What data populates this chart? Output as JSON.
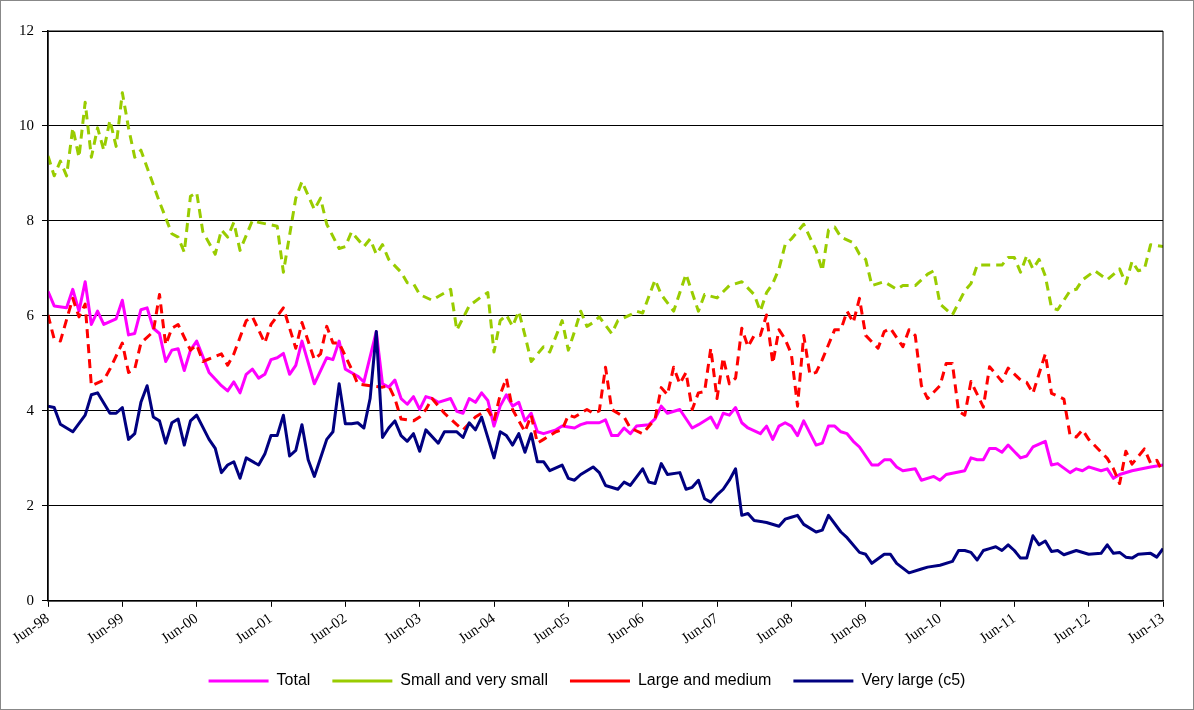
{
  "chart_data": {
    "type": "line",
    "xlim": [
      "1998-06",
      "2013-06"
    ],
    "ylim": [
      0,
      12
    ],
    "yticks": [
      0,
      2,
      4,
      6,
      8,
      10,
      12
    ],
    "xticks": [
      {
        "value": "1998-06",
        "label": "Jun-98"
      },
      {
        "value": "1999-06",
        "label": "Jun-99"
      },
      {
        "value": "2000-06",
        "label": "Jun-00"
      },
      {
        "value": "2001-06",
        "label": "Jun-01"
      },
      {
        "value": "2002-06",
        "label": "Jun-02"
      },
      {
        "value": "2003-06",
        "label": "Jun-03"
      },
      {
        "value": "2004-06",
        "label": "Jun-04"
      },
      {
        "value": "2005-06",
        "label": "Jun-05"
      },
      {
        "value": "2006-06",
        "label": "Jun-06"
      },
      {
        "value": "2007-06",
        "label": "Jun-07"
      },
      {
        "value": "2008-06",
        "label": "Jun-08"
      },
      {
        "value": "2009-06",
        "label": "Jun-09"
      },
      {
        "value": "2010-06",
        "label": "Jun-10"
      },
      {
        "value": "2011-06",
        "label": "Jun-11"
      },
      {
        "value": "2012-06",
        "label": "Jun-12"
      },
      {
        "value": "2013-06",
        "label": "Jun-13"
      }
    ],
    "grid": "y",
    "legend": "bottom",
    "marker": "none",
    "series": [
      {
        "name": "Total",
        "color": "#ff00ff",
        "line_style": "solid",
        "x": [
          "1998-06",
          "1998-07",
          "1998-09",
          "1998-10",
          "1998-11",
          "1998-12",
          "1999-01",
          "1999-02",
          "1999-03",
          "1999-05",
          "1999-06",
          "1999-07",
          "1999-08",
          "1999-09",
          "1999-10",
          "1999-11",
          "1999-12",
          "2000-01",
          "2000-02",
          "2000-03",
          "2000-04",
          "2000-05",
          "2000-06",
          "2000-08",
          "2000-10",
          "2000-11",
          "2000-12",
          "2001-01",
          "2001-02",
          "2001-03",
          "2001-04",
          "2001-05",
          "2001-06",
          "2001-07",
          "2001-08",
          "2001-09",
          "2001-10",
          "2001-11",
          "2002-01",
          "2002-03",
          "2002-04",
          "2002-05",
          "2002-06",
          "2002-08",
          "2002-09",
          "2002-11",
          "2002-12",
          "2003-01",
          "2003-02",
          "2003-03",
          "2003-04",
          "2003-05",
          "2003-06",
          "2003-07",
          "2003-08",
          "2003-09",
          "2003-11",
          "2003-12",
          "2004-01",
          "2004-02",
          "2004-03",
          "2004-04",
          "2004-05",
          "2004-06",
          "2004-07",
          "2004-08",
          "2004-09",
          "2004-10",
          "2004-11",
          "2004-12",
          "2005-01",
          "2005-02",
          "2005-04",
          "2005-05",
          "2005-07",
          "2005-08",
          "2005-09",
          "2005-11",
          "2005-12",
          "2006-01",
          "2006-02",
          "2006-03",
          "2006-04",
          "2006-05",
          "2006-07",
          "2006-08",
          "2006-09",
          "2006-10",
          "2006-12",
          "2007-02",
          "2007-03",
          "2007-05",
          "2007-06",
          "2007-07",
          "2007-08",
          "2007-09",
          "2007-10",
          "2007-11",
          "2008-01",
          "2008-02",
          "2008-03",
          "2008-04",
          "2008-05",
          "2008-06",
          "2008-07",
          "2008-08",
          "2008-10",
          "2008-11",
          "2008-12",
          "2009-01",
          "2009-02",
          "2009-03",
          "2009-04",
          "2009-05",
          "2009-07",
          "2009-08",
          "2009-09",
          "2009-10",
          "2009-11",
          "2009-12",
          "2010-02",
          "2010-03",
          "2010-05",
          "2010-06",
          "2010-07",
          "2010-10",
          "2010-11",
          "2010-12",
          "2011-01",
          "2011-02",
          "2011-03",
          "2011-04",
          "2011-05",
          "2011-07",
          "2011-08",
          "2011-09",
          "2011-11",
          "2011-12",
          "2012-01",
          "2012-03",
          "2012-04",
          "2012-05",
          "2012-06",
          "2012-08",
          "2012-09",
          "2012-10",
          "2012-11",
          "2013-01",
          "2013-04",
          "2013-06"
        ],
        "values": [
          6.52,
          6.21,
          6.17,
          6.56,
          6.1,
          6.72,
          5.82,
          6.1,
          5.82,
          5.94,
          6.33,
          5.6,
          5.63,
          6.13,
          6.17,
          5.74,
          5.63,
          5.04,
          5.28,
          5.31,
          4.85,
          5.28,
          5.47,
          4.81,
          4.53,
          4.42,
          4.61,
          4.38,
          4.77,
          4.88,
          4.69,
          4.77,
          5.08,
          5.12,
          5.21,
          4.77,
          4.96,
          5.47,
          4.57,
          5.12,
          5.08,
          5.47,
          4.88,
          4.73,
          4.61,
          5.67,
          4.57,
          4.5,
          4.65,
          4.26,
          4.14,
          4.3,
          4.03,
          4.3,
          4.26,
          4.18,
          4.26,
          3.99,
          3.95,
          4.26,
          4.18,
          4.38,
          4.22,
          3.68,
          4.1,
          4.34,
          4.1,
          4.18,
          3.79,
          3.95,
          3.56,
          3.52,
          3.6,
          3.68,
          3.64,
          3.71,
          3.75,
          3.75,
          3.81,
          3.48,
          3.48,
          3.64,
          3.52,
          3.68,
          3.71,
          3.83,
          4.1,
          3.95,
          4.03,
          3.64,
          3.71,
          3.87,
          3.64,
          3.95,
          3.91,
          4.07,
          3.75,
          3.64,
          3.52,
          3.68,
          3.4,
          3.68,
          3.75,
          3.68,
          3.48,
          3.79,
          3.28,
          3.32,
          3.68,
          3.68,
          3.56,
          3.52,
          3.36,
          3.24,
          2.86,
          2.86,
          2.97,
          2.97,
          2.82,
          2.74,
          2.78,
          2.54,
          2.62,
          2.54,
          2.66,
          2.74,
          3.01,
          2.97,
          2.97,
          3.21,
          3.21,
          3.13,
          3.28,
          3.01,
          3.05,
          3.24,
          3.36,
          2.86,
          2.89,
          2.7,
          2.78,
          2.74,
          2.82,
          2.74,
          2.78,
          2.58,
          2.66,
          2.74,
          2.82,
          2.86
        ]
      },
      {
        "name": "Small and very small",
        "color": "#99cc00",
        "line_style": "dashed",
        "x": [
          "1998-06",
          "1998-07",
          "1998-08",
          "1998-09",
          "1998-10",
          "1998-11",
          "1998-12",
          "1999-01",
          "1999-02",
          "1999-03",
          "1999-04",
          "1999-05",
          "1999-06",
          "1999-07",
          "1999-08",
          "1999-09",
          "1999-12",
          "2000-02",
          "2000-03",
          "2000-04",
          "2000-05",
          "2000-06",
          "2000-07",
          "2000-09",
          "2000-10",
          "2000-11",
          "2000-12",
          "2001-01",
          "2001-03",
          "2001-04",
          "2001-07",
          "2001-08",
          "2001-10",
          "2001-11",
          "2002-01",
          "2002-02",
          "2002-03",
          "2002-05",
          "2002-06",
          "2002-07",
          "2002-09",
          "2002-10",
          "2002-11",
          "2002-12",
          "2003-01",
          "2003-03",
          "2003-04",
          "2003-05",
          "2003-06",
          "2003-08",
          "2003-09",
          "2003-11",
          "2003-12",
          "2004-02",
          "2004-04",
          "2004-05",
          "2004-06",
          "2004-07",
          "2004-08",
          "2004-09",
          "2004-10",
          "2004-11",
          "2004-12",
          "2005-02",
          "2005-03",
          "2005-05",
          "2005-06",
          "2005-07",
          "2005-08",
          "2005-09",
          "2005-10",
          "2005-11",
          "2006-01",
          "2006-02",
          "2006-04",
          "2006-05",
          "2006-06",
          "2006-08",
          "2006-09",
          "2006-11",
          "2007-01",
          "2007-03",
          "2007-04",
          "2007-06",
          "2007-08",
          "2007-10",
          "2007-12",
          "2008-01",
          "2008-02",
          "2008-03",
          "2008-04",
          "2008-05",
          "2008-06",
          "2008-08",
          "2008-10",
          "2008-11",
          "2008-12",
          "2009-01",
          "2009-02",
          "2009-04",
          "2009-05",
          "2009-06",
          "2009-07",
          "2009-09",
          "2009-11",
          "2009-12",
          "2010-02",
          "2010-04",
          "2010-05",
          "2010-06",
          "2010-08",
          "2010-10",
          "2010-11",
          "2010-12",
          "2011-04",
          "2011-05",
          "2011-06",
          "2011-07",
          "2011-08",
          "2011-09",
          "2011-10",
          "2011-11",
          "2011-12",
          "2012-01",
          "2012-03",
          "2012-04",
          "2012-05",
          "2012-07",
          "2012-09",
          "2012-11",
          "2012-12",
          "2013-01",
          "2013-02",
          "2013-03",
          "2013-04",
          "2013-06"
        ],
        "values": [
          9.37,
          8.95,
          9.26,
          8.95,
          9.96,
          9.34,
          10.5,
          9.34,
          9.96,
          9.49,
          10.12,
          9.57,
          10.7,
          9.96,
          9.34,
          9.49,
          8.4,
          7.73,
          7.66,
          7.34,
          8.52,
          8.6,
          7.77,
          7.3,
          7.81,
          7.66,
          7.97,
          7.38,
          8.01,
          7.97,
          7.89,
          6.92,
          8.48,
          8.83,
          8.24,
          8.48,
          7.93,
          7.42,
          7.46,
          7.77,
          7.46,
          7.62,
          7.3,
          7.5,
          7.19,
          6.92,
          6.7,
          6.68,
          6.45,
          6.33,
          6.41,
          6.56,
          5.7,
          6.21,
          6.41,
          6.49,
          5.24,
          5.9,
          6.02,
          5.78,
          6.1,
          5.59,
          5.04,
          5.35,
          5.24,
          5.9,
          5.28,
          5.67,
          6.1,
          5.78,
          5.86,
          5.98,
          5.63,
          5.9,
          6.02,
          6.1,
          6.06,
          6.76,
          6.45,
          6.1,
          6.88,
          6.1,
          6.45,
          6.38,
          6.64,
          6.72,
          6.45,
          6.1,
          6.49,
          6.68,
          6.99,
          7.5,
          7.62,
          7.93,
          7.38,
          6.95,
          7.81,
          7.87,
          7.66,
          7.54,
          7.3,
          7.19,
          6.64,
          6.72,
          6.56,
          6.64,
          6.64,
          6.88,
          6.95,
          6.25,
          6.02,
          6.53,
          6.68,
          7.07,
          7.07,
          7.23,
          7.23,
          6.92,
          7.27,
          6.99,
          7.19,
          6.84,
          6.17,
          6.13,
          6.53,
          6.56,
          6.76,
          6.95,
          6.76,
          6.99,
          6.68,
          7.15,
          6.95,
          6.99,
          7.5,
          7.46
        ]
      },
      {
        "name": "Large and medium",
        "color": "#ff0000",
        "line_style": "dashed",
        "x": [
          "1998-06",
          "1998-07",
          "1998-08",
          "1998-10",
          "1998-11",
          "1998-12",
          "1999-01",
          "1999-03",
          "1999-04",
          "1999-06",
          "1999-07",
          "1999-08",
          "1999-09",
          "1999-11",
          "1999-12",
          "2000-01",
          "2000-02",
          "2000-03",
          "2000-05",
          "2000-06",
          "2000-07",
          "2000-10",
          "2000-11",
          "2000-12",
          "2001-02",
          "2001-03",
          "2001-05",
          "2001-06",
          "2001-08",
          "2001-10",
          "2001-11",
          "2002-01",
          "2002-02",
          "2002-03",
          "2002-04",
          "2002-05",
          "2002-07",
          "2002-08",
          "2002-10",
          "2002-12",
          "2003-01",
          "2003-02",
          "2003-03",
          "2003-05",
          "2003-06",
          "2003-07",
          "2003-08",
          "2003-10",
          "2003-12",
          "2004-01",
          "2004-03",
          "2004-05",
          "2004-06",
          "2004-07",
          "2004-08",
          "2004-09",
          "2004-11",
          "2004-12",
          "2005-01",
          "2005-02",
          "2005-04",
          "2005-05",
          "2005-06",
          "2005-07",
          "2005-08",
          "2005-09",
          "2005-10",
          "2005-11",
          "2005-12",
          "2006-01",
          "2006-03",
          "2006-04",
          "2006-06",
          "2006-08",
          "2006-09",
          "2006-10",
          "2006-11",
          "2006-12",
          "2007-01",
          "2007-02",
          "2007-03",
          "2007-04",
          "2007-05",
          "2007-06",
          "2007-07",
          "2007-08",
          "2007-09",
          "2007-10",
          "2007-11",
          "2007-12",
          "2008-01",
          "2008-02",
          "2008-03",
          "2008-04",
          "2008-05",
          "2008-06",
          "2008-07",
          "2008-08",
          "2008-09",
          "2008-10",
          "2008-11",
          "2009-01",
          "2009-02",
          "2009-03",
          "2009-04",
          "2009-05",
          "2009-06",
          "2009-08",
          "2009-09",
          "2009-10",
          "2009-12",
          "2010-01",
          "2010-02",
          "2010-03",
          "2010-04",
          "2010-06",
          "2010-07",
          "2010-08",
          "2010-09",
          "2010-10",
          "2010-11",
          "2011-01",
          "2011-02",
          "2011-04",
          "2011-05",
          "2011-07",
          "2011-08",
          "2011-09",
          "2011-11",
          "2011-12",
          "2012-02",
          "2012-03",
          "2012-04",
          "2012-05",
          "2012-06",
          "2012-09",
          "2012-10",
          "2012-11",
          "2012-12",
          "2013-01",
          "2013-03",
          "2013-04",
          "2013-05",
          "2013-06"
        ],
        "values": [
          6.02,
          5.51,
          5.47,
          6.37,
          5.98,
          6.25,
          4.53,
          4.65,
          4.88,
          5.43,
          4.81,
          4.88,
          5.43,
          5.67,
          6.45,
          5.39,
          5.74,
          5.82,
          5.28,
          5.39,
          5.04,
          5.2,
          4.96,
          5.2,
          5.9,
          5.98,
          5.43,
          5.82,
          6.17,
          5.32,
          5.86,
          5.08,
          5.2,
          5.78,
          5.43,
          5.43,
          4.88,
          4.57,
          4.53,
          4.5,
          4.53,
          4.26,
          3.83,
          3.79,
          3.87,
          4.03,
          4.26,
          3.95,
          3.71,
          3.6,
          3.87,
          4.03,
          3.79,
          4.34,
          4.69,
          4.03,
          3.56,
          3.91,
          3.32,
          3.4,
          3.56,
          3.6,
          3.91,
          3.87,
          3.95,
          4.03,
          3.95,
          4.0,
          4.92,
          4.03,
          3.87,
          3.64,
          3.52,
          3.83,
          4.49,
          4.34,
          4.92,
          4.57,
          4.81,
          4.03,
          4.38,
          4.41,
          5.32,
          4.26,
          5.12,
          4.57,
          4.69,
          5.74,
          5.35,
          5.59,
          5.59,
          6.02,
          5.0,
          5.71,
          5.51,
          5.2,
          4.1,
          5.59,
          4.77,
          4.81,
          5.08,
          5.71,
          5.71,
          6.1,
          5.86,
          6.37,
          5.59,
          5.32,
          5.67,
          5.74,
          5.35,
          5.71,
          5.59,
          4.53,
          4.26,
          4.53,
          5.0,
          5.0,
          3.99,
          3.91,
          4.62,
          4.08,
          4.93,
          4.62,
          4.9,
          4.65,
          4.6,
          4.37,
          5.2,
          4.37,
          4.25,
          3.48,
          3.45,
          3.6,
          3.4,
          3.0,
          2.78,
          2.47,
          3.15,
          2.88,
          3.2,
          2.9,
          2.96,
          2.7
        ]
      },
      {
        "name": "Very large (c5)",
        "color": "#000080",
        "line_style": "solid",
        "x": [
          "1998-06",
          "1998-07",
          "1998-08",
          "1998-09",
          "1998-10",
          "1998-12",
          "1999-01",
          "1999-02",
          "1999-04",
          "1999-05",
          "1999-06",
          "1999-07",
          "1999-08",
          "1999-09",
          "1999-10",
          "1999-11",
          "1999-12",
          "2000-01",
          "2000-02",
          "2000-03",
          "2000-04",
          "2000-05",
          "2000-06",
          "2000-08",
          "2000-09",
          "2000-10",
          "2000-11",
          "2000-12",
          "2001-01",
          "2001-02",
          "2001-04",
          "2001-05",
          "2001-06",
          "2001-07",
          "2001-08",
          "2001-09",
          "2001-10",
          "2001-11",
          "2001-12",
          "2002-01",
          "2002-02",
          "2002-03",
          "2002-04",
          "2002-05",
          "2002-06",
          "2002-07",
          "2002-08",
          "2002-09",
          "2002-10",
          "2002-11",
          "2002-12",
          "2003-01",
          "2003-02",
          "2003-03",
          "2003-04",
          "2003-05",
          "2003-06",
          "2003-07",
          "2003-09",
          "2003-10",
          "2003-12",
          "2004-01",
          "2004-02",
          "2004-03",
          "2004-04",
          "2004-06",
          "2004-07",
          "2004-08",
          "2004-09",
          "2004-10",
          "2004-11",
          "2004-12",
          "2005-01",
          "2005-02",
          "2005-03",
          "2005-05",
          "2005-06",
          "2005-07",
          "2005-08",
          "2005-10",
          "2005-11",
          "2005-12",
          "2006-02",
          "2006-03",
          "2006-04",
          "2006-06",
          "2006-07",
          "2006-08",
          "2006-09",
          "2006-10",
          "2006-12",
          "2007-01",
          "2007-02",
          "2007-03",
          "2007-04",
          "2007-05",
          "2007-06",
          "2007-07",
          "2007-08",
          "2007-09",
          "2007-10",
          "2007-11",
          "2007-12",
          "2008-02",
          "2008-04",
          "2008-05",
          "2008-06",
          "2008-07",
          "2008-08",
          "2008-10",
          "2008-11",
          "2008-12",
          "2009-02",
          "2009-03",
          "2009-05",
          "2009-06",
          "2009-07",
          "2009-09",
          "2009-10",
          "2009-11",
          "2010-01",
          "2010-03",
          "2010-04",
          "2010-06",
          "2010-08",
          "2010-09",
          "2010-10",
          "2010-11",
          "2010-12",
          "2011-01",
          "2011-02",
          "2011-03",
          "2011-04",
          "2011-05",
          "2011-06",
          "2011-07",
          "2011-08",
          "2011-09",
          "2011-10",
          "2011-11",
          "2011-12",
          "2012-01",
          "2012-02",
          "2012-04",
          "2012-06",
          "2012-08",
          "2012-09",
          "2012-10",
          "2012-11",
          "2012-12",
          "2013-01",
          "2013-02",
          "2013-04",
          "2013-05",
          "2013-06"
        ],
        "values": [
          4.1,
          4.07,
          3.72,
          3.64,
          3.56,
          3.91,
          4.34,
          4.38,
          3.95,
          3.95,
          4.07,
          3.4,
          3.52,
          4.18,
          4.53,
          3.87,
          3.79,
          3.32,
          3.75,
          3.83,
          3.28,
          3.79,
          3.91,
          3.4,
          3.21,
          2.7,
          2.86,
          2.93,
          2.58,
          3.01,
          2.86,
          3.09,
          3.48,
          3.48,
          3.91,
          3.05,
          3.17,
          3.71,
          2.97,
          2.62,
          3.01,
          3.4,
          3.56,
          4.57,
          3.73,
          3.73,
          3.75,
          3.64,
          4.26,
          5.67,
          3.44,
          3.64,
          3.79,
          3.48,
          3.36,
          3.52,
          3.15,
          3.6,
          3.32,
          3.56,
          3.56,
          3.44,
          3.75,
          3.6,
          3.87,
          3.01,
          3.56,
          3.48,
          3.28,
          3.52,
          3.13,
          3.52,
          2.93,
          2.93,
          2.74,
          2.86,
          2.58,
          2.54,
          2.66,
          2.82,
          2.7,
          2.43,
          2.35,
          2.5,
          2.43,
          2.78,
          2.5,
          2.47,
          2.89,
          2.66,
          2.7,
          2.35,
          2.39,
          2.54,
          2.15,
          2.08,
          2.23,
          2.35,
          2.54,
          2.78,
          1.8,
          1.84,
          1.69,
          1.65,
          1.57,
          1.72,
          1.76,
          1.8,
          1.61,
          1.45,
          1.49,
          1.8,
          1.45,
          1.33,
          1.02,
          0.98,
          0.79,
          0.98,
          0.98,
          0.79,
          0.59,
          0.67,
          0.71,
          0.75,
          0.83,
          1.06,
          1.06,
          1.02,
          0.86,
          1.06,
          1.1,
          1.14,
          1.06,
          1.18,
          1.06,
          0.9,
          0.9,
          1.37,
          1.18,
          1.26,
          1.04,
          1.06,
          0.97,
          1.06,
          0.98,
          1.0,
          1.18,
          1.0,
          1.02,
          0.92,
          0.9,
          0.98,
          1.0,
          0.92,
          1.1
        ]
      }
    ]
  }
}
